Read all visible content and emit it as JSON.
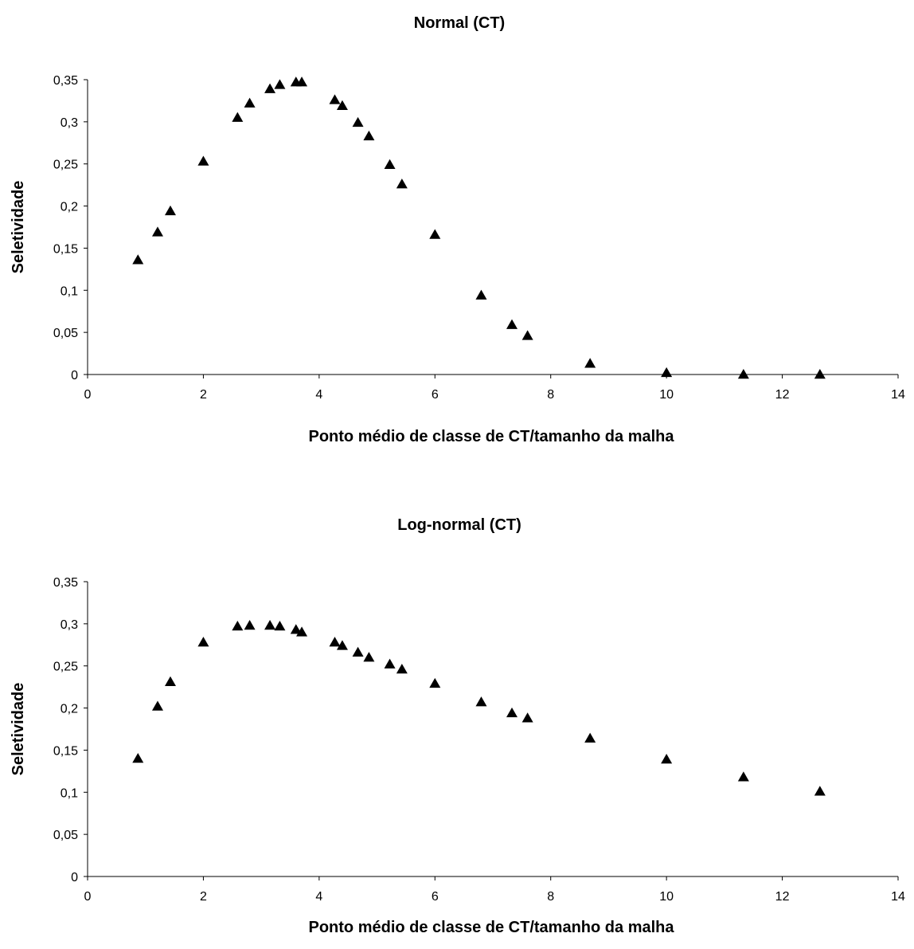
{
  "chart_data": [
    {
      "type": "scatter",
      "title": "Normal (CT)",
      "xlabel": "Ponto médio de classe de CT/tamanho da malha",
      "ylabel": "Seletividade",
      "xlim": [
        0,
        14
      ],
      "ylim": [
        0,
        0.35
      ],
      "x_ticks": [
        "0",
        "2",
        "4",
        "6",
        "8",
        "10",
        "12",
        "14"
      ],
      "y_ticks": [
        "0",
        "0,05",
        "0,1",
        "0,15",
        "0,2",
        "0,25",
        "0,3",
        "0,35"
      ],
      "grid": false,
      "marker": "triangle",
      "series": [
        {
          "points": [
            [
              0.87,
              0.136
            ],
            [
              1.21,
              0.169
            ],
            [
              1.43,
              0.194
            ],
            [
              2.0,
              0.253
            ],
            [
              2.59,
              0.305
            ],
            [
              2.8,
              0.322
            ],
            [
              3.15,
              0.339
            ],
            [
              3.32,
              0.344
            ],
            [
              3.6,
              0.347
            ],
            [
              3.7,
              0.347
            ],
            [
              4.27,
              0.326
            ],
            [
              4.4,
              0.319
            ],
            [
              4.67,
              0.299
            ],
            [
              4.86,
              0.283
            ],
            [
              5.22,
              0.249
            ],
            [
              5.43,
              0.226
            ],
            [
              6.0,
              0.166
            ],
            [
              6.8,
              0.094
            ],
            [
              7.33,
              0.059
            ],
            [
              7.6,
              0.046
            ],
            [
              8.68,
              0.013
            ],
            [
              10.0,
              0.002
            ],
            [
              11.33,
              0.0
            ],
            [
              12.65,
              0.0
            ]
          ]
        }
      ]
    },
    {
      "type": "scatter",
      "title": "Log-normal (CT)",
      "xlabel": "Ponto médio de classe de CT/tamanho da malha",
      "ylabel": "Seletividade",
      "xlim": [
        0,
        14
      ],
      "ylim": [
        0,
        0.35
      ],
      "x_ticks": [
        "0",
        "2",
        "4",
        "6",
        "8",
        "10",
        "12",
        "14"
      ],
      "y_ticks": [
        "0",
        "0,05",
        "0,1",
        "0,15",
        "0,2",
        "0,25",
        "0,3",
        "0,35"
      ],
      "grid": false,
      "marker": "triangle",
      "series": [
        {
          "points": [
            [
              0.87,
              0.14
            ],
            [
              1.21,
              0.202
            ],
            [
              1.43,
              0.231
            ],
            [
              2.0,
              0.278
            ],
            [
              2.59,
              0.297
            ],
            [
              2.8,
              0.298
            ],
            [
              3.15,
              0.298
            ],
            [
              3.32,
              0.297
            ],
            [
              3.6,
              0.293
            ],
            [
              3.7,
              0.29
            ],
            [
              4.27,
              0.278
            ],
            [
              4.4,
              0.274
            ],
            [
              4.67,
              0.266
            ],
            [
              4.86,
              0.26
            ],
            [
              5.22,
              0.252
            ],
            [
              5.43,
              0.246
            ],
            [
              6.0,
              0.229
            ],
            [
              6.8,
              0.207
            ],
            [
              7.33,
              0.194
            ],
            [
              7.6,
              0.188
            ],
            [
              8.68,
              0.164
            ],
            [
              10.0,
              0.139
            ],
            [
              11.33,
              0.118
            ],
            [
              12.65,
              0.101
            ]
          ]
        }
      ]
    }
  ]
}
